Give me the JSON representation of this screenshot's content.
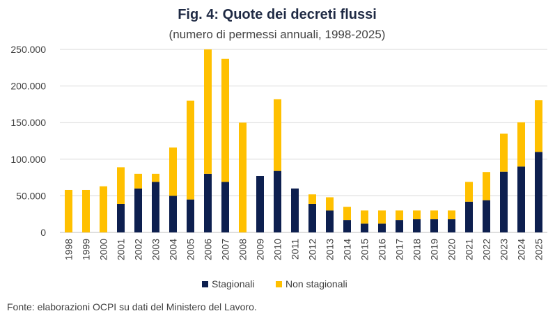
{
  "chart_data": {
    "type": "bar",
    "stacked": true,
    "title": "Fig. 4: Quote dei decreti flussi",
    "subtitle": "(numero di permessi annuali, 1998-2025)",
    "categories": [
      "1998",
      "1999",
      "2000",
      "2001",
      "2002",
      "2003",
      "2004",
      "2005",
      "2006",
      "2007",
      "2008",
      "2009",
      "2010",
      "2011",
      "2012",
      "2013",
      "2014",
      "2015",
      "2016",
      "2017",
      "2018",
      "2019",
      "2020",
      "2021",
      "2022",
      "2023",
      "2024",
      "2025"
    ],
    "series": [
      {
        "name": "Stagionali",
        "color": "#0d1f4f",
        "values": [
          0,
          0,
          0,
          39000,
          60000,
          69000,
          50000,
          45000,
          80000,
          69000,
          0,
          77000,
          84000,
          60000,
          39000,
          30000,
          17000,
          12000,
          12000,
          17000,
          18000,
          18000,
          18000,
          42000,
          44000,
          83000,
          90000,
          110000
        ]
      },
      {
        "name": "Non stagionali",
        "color": "#ffc000",
        "values": [
          58000,
          58000,
          63000,
          50000,
          20000,
          11000,
          66000,
          135000,
          170000,
          168000,
          150000,
          0,
          98000,
          0,
          13000,
          18000,
          18000,
          18000,
          18000,
          13000,
          12000,
          12000,
          12000,
          27000,
          38500,
          52000,
          60500,
          70500
        ]
      }
    ],
    "ylim": [
      0,
      250000
    ],
    "yticks": [
      0,
      50000,
      100000,
      150000,
      200000,
      250000
    ],
    "ytick_labels": [
      "0",
      "50.000",
      "100.000",
      "150.000",
      "200.000",
      "250.000"
    ],
    "grid": true,
    "legend_position": "bottom",
    "xlabel": "",
    "ylabel": ""
  },
  "source_note": "Fonte: elaborazioni OCPI su dati del Ministero del Lavoro."
}
